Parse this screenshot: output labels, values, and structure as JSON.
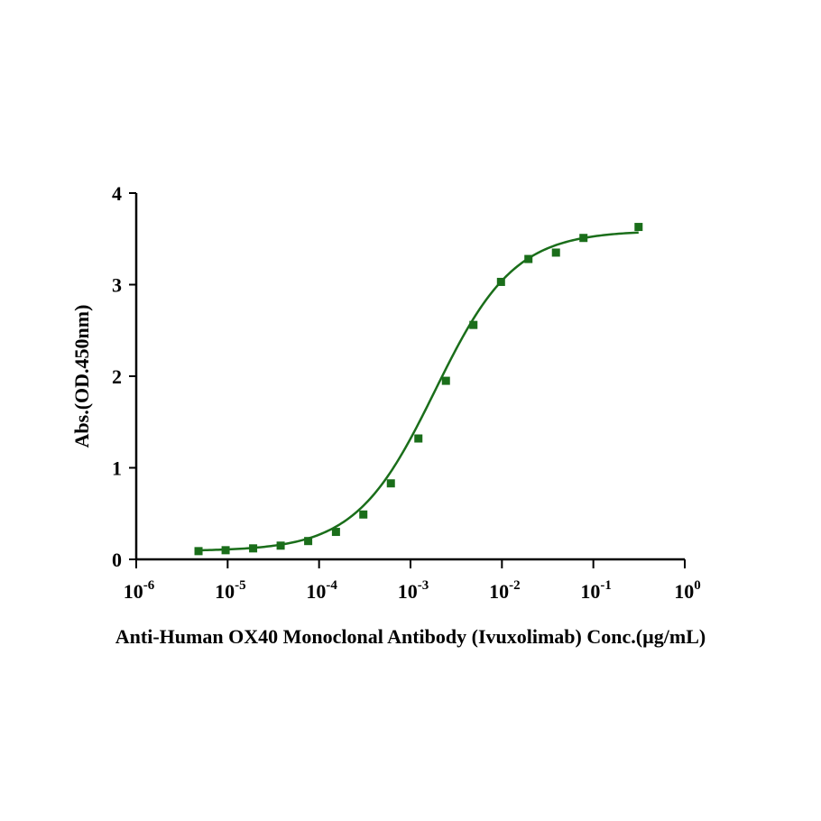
{
  "chart_data": {
    "type": "scatter",
    "title": "",
    "xlabel": "Anti-Human OX40 Monoclonal Antibody (Ivuxolimab) Conc.(µg/mL)",
    "ylabel": "Abs.(OD.450nm)",
    "x_scale": "log",
    "xlim": [
      1e-06,
      1
    ],
    "ylim": [
      0,
      4
    ],
    "x_ticks": [
      {
        "value": 1e-06,
        "base": "10",
        "exp": "-6"
      },
      {
        "value": 1e-05,
        "base": "10",
        "exp": "-5"
      },
      {
        "value": 0.0001,
        "base": "10",
        "exp": "-4"
      },
      {
        "value": 0.001,
        "base": "10",
        "exp": "-3"
      },
      {
        "value": 0.01,
        "base": "10",
        "exp": "-2"
      },
      {
        "value": 0.1,
        "base": "10",
        "exp": "-1"
      },
      {
        "value": 1,
        "base": "10",
        "exp": "0"
      }
    ],
    "y_ticks": [
      {
        "value": 0,
        "label": "0"
      },
      {
        "value": 1,
        "label": "1"
      },
      {
        "value": 2,
        "label": "2"
      },
      {
        "value": 3,
        "label": "3"
      },
      {
        "value": 4,
        "label": "4"
      }
    ],
    "grid": false,
    "legend": "none",
    "color": "#1a6e1a",
    "series": [
      {
        "x": [
          4.8e-06,
          9.5e-06,
          1.9e-05,
          3.8e-05,
          7.6e-05,
          0.000153,
          0.000305,
          0.00061,
          0.00122,
          0.00244,
          0.00488,
          0.00977,
          0.0195,
          0.039,
          0.078,
          0.3125
        ],
        "y": [
          0.09,
          0.1,
          0.12,
          0.15,
          0.2,
          0.3,
          0.49,
          0.83,
          1.32,
          1.95,
          2.56,
          3.03,
          3.28,
          3.35,
          3.51,
          3.63
        ]
      }
    ],
    "fit_curve": {
      "model": "4PL",
      "bottom": 0.09,
      "top": 3.59,
      "ec50": 0.00185,
      "hill": 1.0
    }
  }
}
